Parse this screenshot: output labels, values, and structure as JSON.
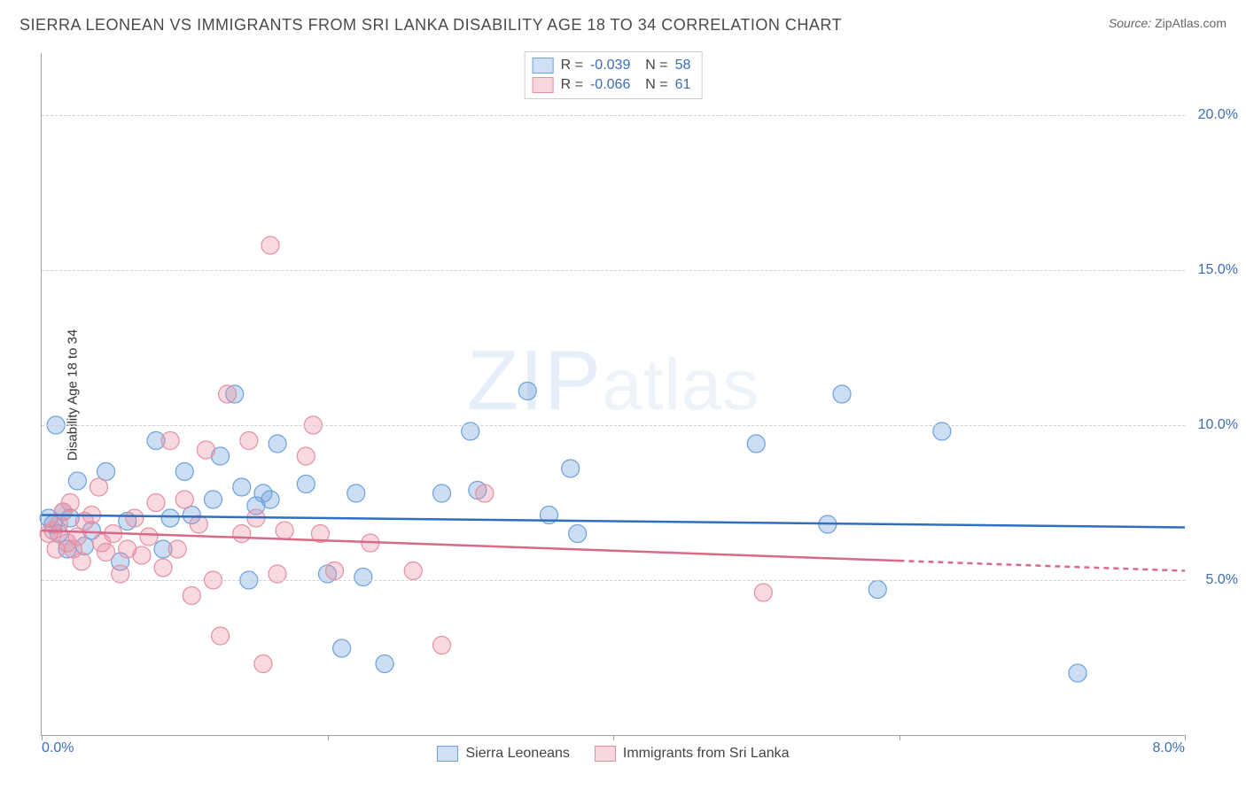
{
  "title": "SIERRA LEONEAN VS IMMIGRANTS FROM SRI LANKA DISABILITY AGE 18 TO 34 CORRELATION CHART",
  "source_label": "Source:",
  "source_value": "ZipAtlas.com",
  "watermark": "ZIPatlas",
  "ylabel": "Disability Age 18 to 34",
  "chart": {
    "type": "scatter",
    "x_range": [
      0,
      8
    ],
    "y_range": [
      0,
      22
    ],
    "y_gridlines": [
      5,
      10,
      15,
      20
    ],
    "y_tick_labels": [
      "5.0%",
      "10.0%",
      "15.0%",
      "20.0%"
    ],
    "x_tickmarks": [
      0,
      2,
      4,
      6,
      8
    ],
    "x_left_label": "0.0%",
    "x_right_label": "8.0%",
    "background_color": "#ffffff",
    "grid_color": "#d0d0d0",
    "axis_color": "#9e9e9e",
    "tick_label_color": "#3b6db8",
    "series": [
      {
        "name": "Sierra Leoneans",
        "R": "-0.039",
        "N": "58",
        "color_fill": "rgba(109,160,220,0.35)",
        "color_stroke": "#6da0dc",
        "swatch_fill": "#cfe0f4",
        "swatch_border": "#6da0dc",
        "marker_radius": 10,
        "trend": {
          "y_at_x0": 7.1,
          "y_at_x8": 6.7,
          "stroke": "#2f6fc0",
          "width": 2.5,
          "dash_from_x": null
        },
        "points": [
          [
            0.05,
            7.0
          ],
          [
            0.08,
            6.8
          ],
          [
            0.1,
            10.0
          ],
          [
            0.12,
            6.5
          ],
          [
            0.15,
            7.2
          ],
          [
            0.18,
            6.0
          ],
          [
            0.2,
            7.0
          ],
          [
            0.25,
            8.2
          ],
          [
            0.3,
            6.1
          ],
          [
            0.35,
            6.6
          ],
          [
            0.45,
            8.5
          ],
          [
            0.55,
            5.6
          ],
          [
            0.6,
            6.9
          ],
          [
            0.8,
            9.5
          ],
          [
            0.85,
            6.0
          ],
          [
            0.9,
            7.0
          ],
          [
            1.0,
            8.5
          ],
          [
            1.05,
            7.1
          ],
          [
            1.2,
            7.6
          ],
          [
            1.25,
            9.0
          ],
          [
            1.35,
            11.0
          ],
          [
            1.4,
            8.0
          ],
          [
            1.45,
            5.0
          ],
          [
            1.5,
            7.4
          ],
          [
            1.55,
            7.8
          ],
          [
            1.6,
            7.6
          ],
          [
            1.65,
            9.4
          ],
          [
            1.85,
            8.1
          ],
          [
            2.0,
            5.2
          ],
          [
            2.1,
            2.8
          ],
          [
            2.2,
            7.8
          ],
          [
            2.25,
            5.1
          ],
          [
            2.4,
            2.3
          ],
          [
            2.8,
            7.8
          ],
          [
            3.0,
            9.8
          ],
          [
            3.05,
            7.9
          ],
          [
            3.4,
            11.1
          ],
          [
            3.55,
            7.1
          ],
          [
            3.7,
            8.6
          ],
          [
            3.75,
            6.5
          ],
          [
            5.0,
            9.4
          ],
          [
            5.5,
            6.8
          ],
          [
            5.6,
            11.0
          ],
          [
            5.85,
            4.7
          ],
          [
            6.3,
            9.8
          ],
          [
            7.25,
            2.0
          ]
        ]
      },
      {
        "name": "Immigrants from Sri Lanka",
        "R": "-0.066",
        "N": "61",
        "color_fill": "rgba(235,140,160,0.33)",
        "color_stroke": "#e68fa2",
        "swatch_fill": "#f8d6de",
        "swatch_border": "#e68fa2",
        "marker_radius": 10,
        "trend": {
          "y_at_x0": 6.6,
          "y_at_x8": 5.3,
          "stroke": "#d96a87",
          "width": 2.5,
          "dash_from_x": 6.0
        },
        "points": [
          [
            0.05,
            6.5
          ],
          [
            0.08,
            6.6
          ],
          [
            0.1,
            6.0
          ],
          [
            0.12,
            6.8
          ],
          [
            0.15,
            7.2
          ],
          [
            0.18,
            6.2
          ],
          [
            0.2,
            7.5
          ],
          [
            0.22,
            6.0
          ],
          [
            0.25,
            6.4
          ],
          [
            0.28,
            5.6
          ],
          [
            0.3,
            6.9
          ],
          [
            0.35,
            7.1
          ],
          [
            0.4,
            8.0
          ],
          [
            0.42,
            6.2
          ],
          [
            0.45,
            5.9
          ],
          [
            0.5,
            6.5
          ],
          [
            0.55,
            5.2
          ],
          [
            0.6,
            6.0
          ],
          [
            0.65,
            7.0
          ],
          [
            0.7,
            5.8
          ],
          [
            0.75,
            6.4
          ],
          [
            0.8,
            7.5
          ],
          [
            0.85,
            5.4
          ],
          [
            0.9,
            9.5
          ],
          [
            0.95,
            6.0
          ],
          [
            1.0,
            7.6
          ],
          [
            1.05,
            4.5
          ],
          [
            1.1,
            6.8
          ],
          [
            1.15,
            9.2
          ],
          [
            1.2,
            5.0
          ],
          [
            1.25,
            3.2
          ],
          [
            1.3,
            11.0
          ],
          [
            1.4,
            6.5
          ],
          [
            1.45,
            9.5
          ],
          [
            1.5,
            7.0
          ],
          [
            1.55,
            2.3
          ],
          [
            1.6,
            15.8
          ],
          [
            1.65,
            5.2
          ],
          [
            1.7,
            6.6
          ],
          [
            1.85,
            9.0
          ],
          [
            1.9,
            10.0
          ],
          [
            1.95,
            6.5
          ],
          [
            2.05,
            5.3
          ],
          [
            2.3,
            6.2
          ],
          [
            2.6,
            5.3
          ],
          [
            2.8,
            2.9
          ],
          [
            3.1,
            7.8
          ],
          [
            5.05,
            4.6
          ]
        ]
      }
    ]
  },
  "bottom_legend": [
    {
      "label": "Sierra Leoneans",
      "swatch_fill": "#cfe0f4",
      "swatch_border": "#6da0dc"
    },
    {
      "label": "Immigrants from Sri Lanka",
      "swatch_fill": "#f8d6de",
      "swatch_border": "#e68fa2"
    }
  ]
}
